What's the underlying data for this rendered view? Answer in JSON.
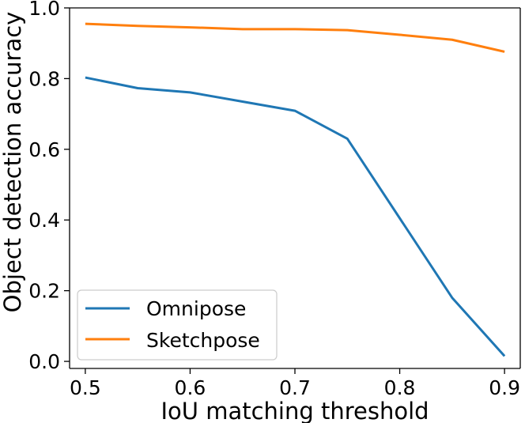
{
  "chart_data": {
    "type": "line",
    "title": "",
    "xlabel": "IoU matching threshold",
    "ylabel": "Object detection accuracy",
    "x": [
      0.5,
      0.55,
      0.6,
      0.65,
      0.7,
      0.75,
      0.8,
      0.85,
      0.9
    ],
    "xlim": [
      0.485,
      0.915
    ],
    "ylim": [
      -0.02,
      1.0
    ],
    "xticks": [
      0.5,
      0.6,
      0.7,
      0.8,
      0.9
    ],
    "xtick_labels": [
      "0.5",
      "0.6",
      "0.7",
      "0.8",
      "0.9"
    ],
    "yticks": [
      0.0,
      0.2,
      0.4,
      0.6,
      0.8,
      1.0
    ],
    "ytick_labels": [
      "0.0",
      "0.2",
      "0.4",
      "0.6",
      "0.8",
      "1.0"
    ],
    "grid": false,
    "legend_position": "bottom-left",
    "series": [
      {
        "name": "Omnipose",
        "color": "#1f77b4",
        "values": [
          0.803,
          0.773,
          0.761,
          0.735,
          0.709,
          0.63,
          0.405,
          0.18,
          0.015
        ]
      },
      {
        "name": "Sketchpose",
        "color": "#ff7f0e",
        "values": [
          0.955,
          0.949,
          0.945,
          0.94,
          0.94,
          0.937,
          0.924,
          0.91,
          0.876
        ]
      }
    ]
  }
}
